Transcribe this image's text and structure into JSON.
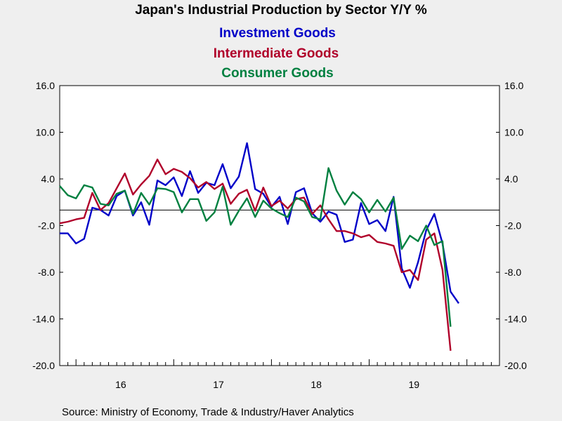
{
  "chart_data": {
    "type": "line",
    "title": "Japan's Industrial Production by Sector Y/Y %",
    "source": "Source:  Ministry of Economy, Trade & Industry/Haver Analytics",
    "x_tick_labels": [
      "16",
      "17",
      "18",
      "19"
    ],
    "x_start": "2015-11",
    "x_end": "2020-05",
    "ylim": [
      -20,
      16
    ],
    "y_ticks": [
      "16.0",
      "10.0",
      "4.0",
      "-2.0",
      "-8.0",
      "-14.0",
      "-20.0"
    ],
    "reference_line": 0,
    "series": [
      {
        "name": "Investment Goods",
        "color": "#0000c8",
        "values": [
          -3.0,
          -3.0,
          -4.3,
          -3.7,
          0.3,
          0.0,
          -0.7,
          1.8,
          2.5,
          -0.7,
          1.0,
          -1.9,
          3.8,
          3.2,
          4.2,
          1.8,
          5.0,
          2.2,
          3.5,
          3.2,
          5.9,
          2.8,
          4.3,
          8.6,
          2.7,
          2.1,
          0.4,
          1.7,
          -1.8,
          2.3,
          2.8,
          -0.4,
          -1.5,
          -0.2,
          -0.6,
          -4.1,
          -3.8,
          0.9,
          -1.8,
          -1.3,
          -2.7,
          1.7,
          -7.5,
          -10.0,
          -6.7,
          -2.6,
          -0.5,
          -4.3,
          -10.5,
          -12.0
        ]
      },
      {
        "name": "Intermediate Goods",
        "color": "#b0002a",
        "values": [
          -1.7,
          -1.5,
          -1.2,
          -1.0,
          2.2,
          0.0,
          0.9,
          2.8,
          4.7,
          2.0,
          3.3,
          4.4,
          6.5,
          4.6,
          5.3,
          4.9,
          4.1,
          2.9,
          3.6,
          2.7,
          3.4,
          0.8,
          2.1,
          2.6,
          -0.1,
          2.9,
          0.5,
          1.2,
          0.2,
          1.4,
          1.6,
          -0.5,
          0.6,
          -1.2,
          -2.7,
          -2.7,
          -3.0,
          -3.5,
          -3.2,
          -4.1,
          -4.3,
          -4.6,
          -8.0,
          -7.7,
          -9.0,
          -3.8,
          -3.0,
          -7.7,
          -18.1
        ]
      },
      {
        "name": "Consumer Goods",
        "color": "#008040",
        "values": [
          3.1,
          1.9,
          1.5,
          3.2,
          2.9,
          0.8,
          0.6,
          2.1,
          2.5,
          -0.5,
          2.2,
          0.7,
          2.8,
          2.7,
          2.3,
          -0.3,
          1.4,
          1.4,
          -1.4,
          -0.3,
          3.0,
          -1.9,
          -0.1,
          1.5,
          -0.9,
          1.2,
          0.2,
          -0.4,
          -0.9,
          1.6,
          1.1,
          -0.9,
          -1.2,
          5.4,
          2.5,
          0.7,
          2.3,
          1.4,
          -0.3,
          1.3,
          -0.2,
          1.6,
          -5.0,
          -3.3,
          -4.0,
          -2.0,
          -4.5,
          -4.0,
          -15.0
        ]
      }
    ]
  }
}
